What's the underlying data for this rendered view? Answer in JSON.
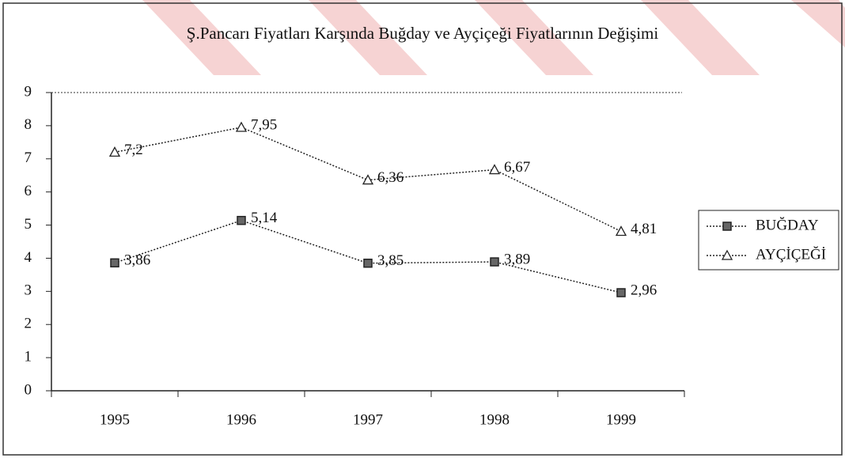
{
  "chart_data": {
    "type": "line",
    "title": "Ş.Pancarı Fiyatları Karşında Buğday ve Ayçiçeği Fiyatlarının Değişimi",
    "categories": [
      "1995",
      "1996",
      "1997",
      "1998",
      "1999"
    ],
    "series": [
      {
        "name": "BUĞDAY",
        "color": "#222222",
        "marker": "square",
        "values": [
          3.86,
          5.14,
          3.85,
          3.89,
          2.96
        ],
        "value_labels": [
          "3,86",
          "5,14",
          "3,85",
          "3,89",
          "2,96"
        ]
      },
      {
        "name": "AYÇİÇEĞİ",
        "color": "#222222",
        "marker": "triangle",
        "values": [
          7.2,
          7.95,
          6.36,
          6.67,
          4.81
        ],
        "value_labels": [
          "7,2",
          "7,95",
          "6,36",
          "6,67",
          "4,81"
        ]
      }
    ],
    "ylim": [
      0,
      9
    ],
    "yticks": [
      0,
      1,
      2,
      3,
      4,
      5,
      6,
      7,
      8,
      9
    ],
    "grid": false,
    "legend": "right"
  }
}
